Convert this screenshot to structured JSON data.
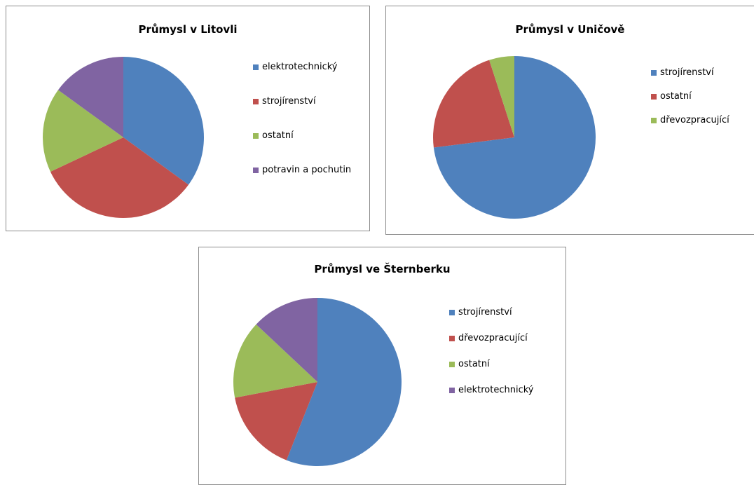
{
  "chart_data": [
    {
      "type": "pie",
      "title": "Průmysl v Litovli",
      "categories": [
        "elektrotechnický",
        "strojírenství",
        "ostatní",
        "potravin a pochutin"
      ],
      "values": [
        35,
        33,
        17,
        15
      ],
      "colors": [
        "#4f81bd",
        "#c0504d",
        "#9bbb59",
        "#8064a2"
      ]
    },
    {
      "type": "pie",
      "title": "Průmysl v Uničově",
      "categories": [
        "strojírenství",
        "ostatní",
        "dřevozpracující"
      ],
      "values": [
        73,
        22,
        5
      ],
      "colors": [
        "#4f81bd",
        "#c0504d",
        "#9bbb59"
      ]
    },
    {
      "type": "pie",
      "title": "Průmysl ve Šternberku",
      "categories": [
        "strojírenství",
        "dřevozpracující",
        "ostatní",
        "elektrotechnický"
      ],
      "values": [
        56,
        16,
        15,
        13
      ],
      "colors": [
        "#4f81bd",
        "#c0504d",
        "#9bbb59",
        "#8064a2"
      ]
    }
  ]
}
